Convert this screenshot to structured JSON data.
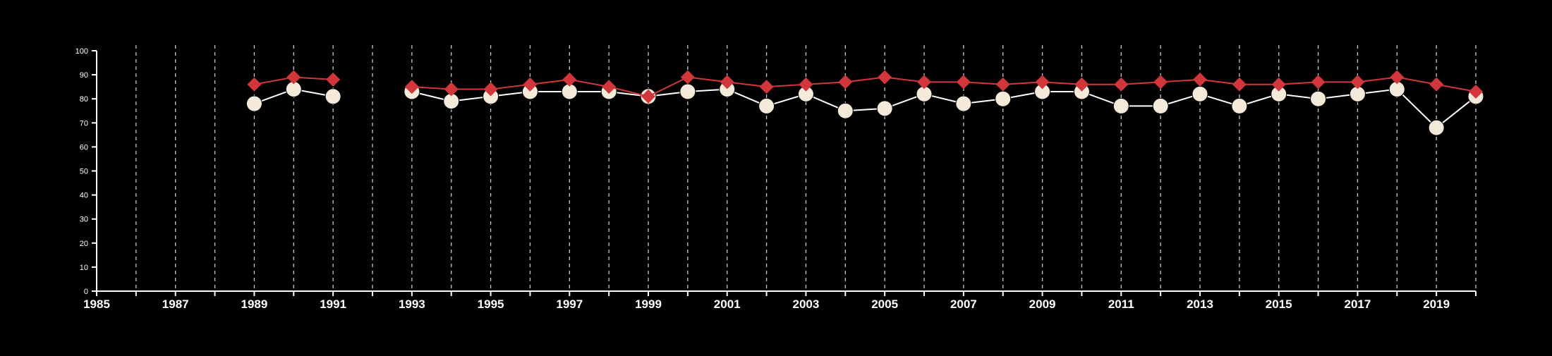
{
  "chart_data": {
    "type": "line",
    "title": "",
    "xlabel": "",
    "ylabel": "",
    "xlim": [
      1985,
      2020
    ],
    "ylim": [
      0,
      100
    ],
    "x_ticks": [
      1985,
      1987,
      1989,
      1991,
      1993,
      1995,
      1997,
      1999,
      2001,
      2003,
      2005,
      2007,
      2009,
      2011,
      2013,
      2015,
      2017,
      2019
    ],
    "y_ticks": [
      0,
      10,
      20,
      30,
      40,
      50,
      60,
      70,
      80,
      90,
      100
    ],
    "vertical_dashed_gridlines": true,
    "grid_x_years": [
      1986,
      1987,
      1988,
      1989,
      1990,
      1991,
      1992,
      1993,
      1994,
      1995,
      1996,
      1997,
      1998,
      1999,
      2000,
      2001,
      2002,
      2003,
      2004,
      2005,
      2006,
      2007,
      2008,
      2009,
      2010,
      2011,
      2012,
      2013,
      2014,
      2015,
      2016,
      2017,
      2018,
      2019,
      2020
    ],
    "legend": "none",
    "background": "#000000",
    "series": [
      {
        "marker": "circle",
        "color": "#f5ead9",
        "line_color": "#ffffff",
        "points": [
          [
            1989,
            78
          ],
          [
            1990,
            84
          ],
          [
            1991,
            81
          ],
          null,
          [
            1993,
            83
          ],
          [
            1994,
            79
          ],
          [
            1995,
            81
          ],
          [
            1996,
            83
          ],
          [
            1997,
            83
          ],
          [
            1998,
            83
          ],
          [
            1999,
            81
          ],
          [
            2000,
            83
          ],
          [
            2001,
            84
          ],
          [
            2002,
            77
          ],
          [
            2003,
            82
          ],
          [
            2004,
            75
          ],
          [
            2005,
            76
          ],
          [
            2006,
            82
          ],
          [
            2007,
            78
          ],
          [
            2008,
            80
          ],
          [
            2009,
            83
          ],
          [
            2010,
            83
          ],
          [
            2011,
            77
          ],
          [
            2012,
            77
          ],
          [
            2013,
            82
          ],
          [
            2014,
            77
          ],
          [
            2015,
            82
          ],
          [
            2016,
            80
          ],
          [
            2017,
            82
          ],
          [
            2018,
            84
          ],
          [
            2019,
            68
          ],
          [
            2020,
            81
          ]
        ]
      },
      {
        "marker": "diamond",
        "color": "#d2363a",
        "line_color": "#d2363a",
        "points": [
          [
            1989,
            86
          ],
          [
            1990,
            89
          ],
          [
            1991,
            88
          ],
          null,
          [
            1993,
            85
          ],
          [
            1994,
            84
          ],
          [
            1995,
            84
          ],
          [
            1996,
            86
          ],
          [
            1997,
            88
          ],
          [
            1998,
            85
          ],
          [
            1999,
            81
          ],
          [
            2000,
            89
          ],
          [
            2001,
            87
          ],
          [
            2002,
            85
          ],
          [
            2003,
            86
          ],
          [
            2004,
            87
          ],
          [
            2005,
            89
          ],
          [
            2006,
            87
          ],
          [
            2007,
            87
          ],
          [
            2008,
            86
          ],
          [
            2009,
            87
          ],
          [
            2010,
            86
          ],
          [
            2011,
            86
          ],
          [
            2012,
            87
          ],
          [
            2013,
            88
          ],
          [
            2014,
            86
          ],
          [
            2015,
            86
          ],
          [
            2016,
            87
          ],
          [
            2017,
            87
          ],
          [
            2018,
            89
          ],
          [
            2019,
            86
          ],
          [
            2020,
            83
          ]
        ]
      }
    ]
  }
}
